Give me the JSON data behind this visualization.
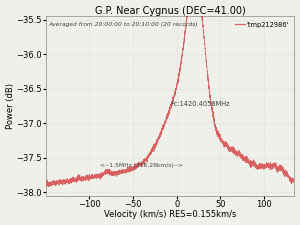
{
  "title": "G.P. Near Cygnus (DEC=41.00)",
  "xlabel": "Velocity (km/s) RES=0.155km/s",
  "ylabel": "Power (dB)",
  "legend_label": "'tmp212986'",
  "annotation1": "Averaged from 20:00:00 to 20:10:00 (20 records)",
  "annotation2": "Fc:1420.4058MHz",
  "annotation3": "<--1.5MHz (316.28km/s)-->",
  "line_color": "#d96060",
  "xlim": [
    -150,
    135
  ],
  "ylim": [
    -38.05,
    -35.45
  ],
  "yticks": [
    -38.0,
    -37.5,
    -37.0,
    -36.5,
    -36.0,
    -35.5
  ],
  "xticks": [
    -100,
    -50,
    0,
    50,
    100
  ],
  "bg_color": "#f0f0ea",
  "grid_color": "#d0d0c8",
  "title_fontsize": 7,
  "label_fontsize": 6,
  "tick_fontsize": 6
}
